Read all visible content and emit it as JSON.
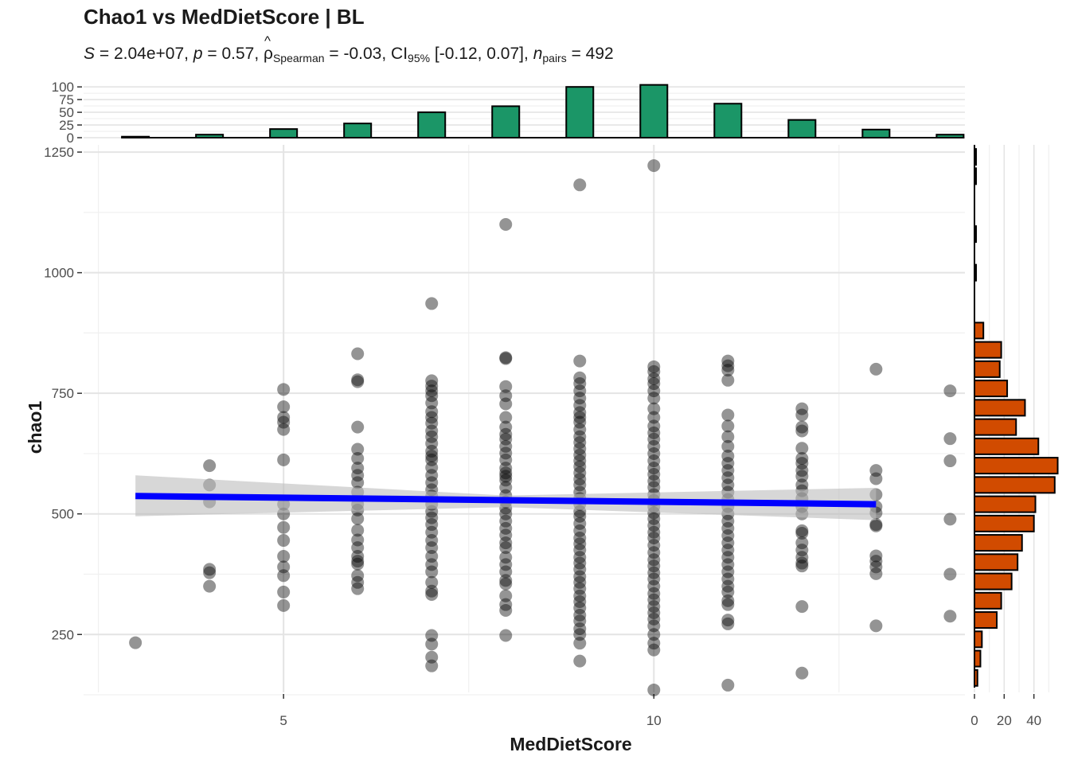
{
  "chart_data": {
    "type": "scatter",
    "title": "Chao1 vs MedDietScore | BL",
    "subtitle": {
      "s_label": "S",
      "s_value": "= 2.04e+07,",
      "p_label": "p",
      "p_value": "= 0.57,",
      "rho_symbol": "ρ",
      "rho_sub": "Spearman",
      "rho_value": "= -0.03,",
      "ci_label": "CI",
      "ci_sub": "95%",
      "ci_value": "[-0.12, 0.07],",
      "n_label": "n",
      "n_sub": "pairs",
      "n_value": "= 492"
    },
    "xlabel": "MedDietScore",
    "ylabel": "chao1",
    "xlim": [
      2.3,
      14.2
    ],
    "ylim": [
      130,
      1265
    ],
    "x_ticks": [
      5,
      10
    ],
    "y_ticks": [
      250,
      500,
      750,
      1000,
      1250
    ],
    "grid": true,
    "point_color": "#000000",
    "point_opacity": 0.42,
    "fit_line": {
      "x": [
        3,
        13
      ],
      "y": [
        537,
        520
      ],
      "color": "#0000ff"
    },
    "ci_band": {
      "x": [
        3,
        8,
        13
      ],
      "lower": [
        495,
        514,
        487
      ],
      "upper": [
        580,
        538,
        554
      ],
      "color": "#bdbdbd"
    },
    "points": [
      {
        "x": 3,
        "y": [
          233
        ]
      },
      {
        "x": 4,
        "y": [
          600,
          560,
          525,
          385,
          378,
          350
        ]
      },
      {
        "x": 5,
        "y": [
          758,
          722,
          700,
          690,
          675,
          612,
          520,
          500,
          472,
          445,
          412,
          390,
          372,
          338,
          310
        ]
      },
      {
        "x": 6,
        "y": [
          832,
          778,
          774,
          680,
          634,
          615,
          595,
          580,
          565,
          545,
          520,
          508,
          490,
          466,
          446,
          430,
          412,
          402,
          396,
          372,
          358,
          345
        ]
      },
      {
        "x": 7,
        "y": [
          936,
          776,
          765,
          755,
          745,
          730,
          712,
          700,
          688,
          672,
          660,
          646,
          630,
          620,
          612,
          596,
          580,
          565,
          550,
          537,
          520,
          505,
          492,
          478,
          462,
          445,
          430,
          412,
          395,
          380,
          358,
          340,
          333,
          248,
          230,
          203,
          185
        ]
      },
      {
        "x": 8,
        "y": [
          1100,
          824,
          822,
          764,
          745,
          728,
          700,
          680,
          665,
          655,
          640,
          626,
          612,
          595,
          585,
          578,
          570,
          555,
          538,
          525,
          512,
          500,
          485,
          470,
          456,
          440,
          430,
          410,
          395,
          380,
          362,
          355,
          330,
          312,
          300,
          248
        ]
      },
      {
        "x": 9,
        "y": [
          1182,
          817,
          782,
          770,
          755,
          740,
          725,
          710,
          700,
          690,
          675,
          660,
          648,
          635,
          622,
          610,
          598,
          585,
          572,
          560,
          545,
          532,
          520,
          505,
          495,
          480,
          465,
          450,
          438,
          425,
          410,
          398,
          385,
          370,
          358,
          345,
          330,
          318,
          305,
          290,
          278,
          262,
          250,
          232,
          195
        ]
      },
      {
        "x": 10,
        "y": [
          1222,
          805,
          795,
          780,
          770,
          755,
          740,
          718,
          700,
          682,
          668,
          655,
          640,
          625,
          610,
          595,
          582,
          568,
          555,
          540,
          528,
          515,
          502,
          490,
          476,
          462,
          450,
          435,
          420,
          405,
          392,
          378,
          365,
          350,
          335,
          322,
          308,
          295,
          282,
          268,
          250,
          232,
          218,
          135
        ]
      },
      {
        "x": 11,
        "y": [
          817,
          807,
          798,
          777,
          705,
          682,
          660,
          640,
          620,
          605,
          590,
          575,
          560,
          545,
          530,
          515,
          500,
          485,
          470,
          455,
          440,
          425,
          410,
          395,
          380,
          365,
          350,
          338,
          320,
          312,
          280,
          272,
          145
        ]
      },
      {
        "x": 12,
        "y": [
          718,
          705,
          680,
          672,
          636,
          615,
          605,
          590,
          578,
          560,
          548,
          532,
          515,
          500,
          465,
          460,
          440,
          425,
          410,
          398,
          392,
          308,
          170
        ]
      },
      {
        "x": 13,
        "y": [
          800,
          590,
          573,
          540,
          515,
          502,
          478,
          475,
          413,
          402,
          390,
          376,
          268
        ]
      },
      {
        "x": 14,
        "y": [
          755,
          656,
          610,
          489,
          375,
          288
        ]
      }
    ],
    "top_histogram": {
      "fill": "#1b9667",
      "y_ticks": [
        0,
        25,
        50,
        75,
        100
      ],
      "ylim": [
        0,
        105
      ],
      "bars": [
        {
          "x": 3,
          "count": 2
        },
        {
          "x": 4,
          "count": 6
        },
        {
          "x": 5,
          "count": 17
        },
        {
          "x": 6,
          "count": 28
        },
        {
          "x": 7,
          "count": 50
        },
        {
          "x": 8,
          "count": 62
        },
        {
          "x": 9,
          "count": 100
        },
        {
          "x": 10,
          "count": 104
        },
        {
          "x": 11,
          "count": 67
        },
        {
          "x": 12,
          "count": 35
        },
        {
          "x": 13,
          "count": 16
        },
        {
          "x": 14,
          "count": 6
        }
      ]
    },
    "right_histogram": {
      "fill": "#d14b00",
      "x_ticks": [
        0,
        20,
        40
      ],
      "xlim": [
        0,
        60
      ],
      "bars": [
        {
          "y": 160,
          "count": 2
        },
        {
          "y": 200,
          "count": 4
        },
        {
          "y": 240,
          "count": 5
        },
        {
          "y": 280,
          "count": 15
        },
        {
          "y": 320,
          "count": 18
        },
        {
          "y": 360,
          "count": 25
        },
        {
          "y": 400,
          "count": 29
        },
        {
          "y": 440,
          "count": 32
        },
        {
          "y": 480,
          "count": 40
        },
        {
          "y": 520,
          "count": 41
        },
        {
          "y": 560,
          "count": 54
        },
        {
          "y": 600,
          "count": 56
        },
        {
          "y": 640,
          "count": 43
        },
        {
          "y": 680,
          "count": 28
        },
        {
          "y": 720,
          "count": 34
        },
        {
          "y": 760,
          "count": 22
        },
        {
          "y": 800,
          "count": 17
        },
        {
          "y": 840,
          "count": 18
        },
        {
          "y": 880,
          "count": 6
        },
        {
          "y": 1000,
          "count": 1
        },
        {
          "y": 1080,
          "count": 1
        },
        {
          "y": 1200,
          "count": 1
        },
        {
          "y": 1240,
          "count": 1
        }
      ]
    }
  }
}
